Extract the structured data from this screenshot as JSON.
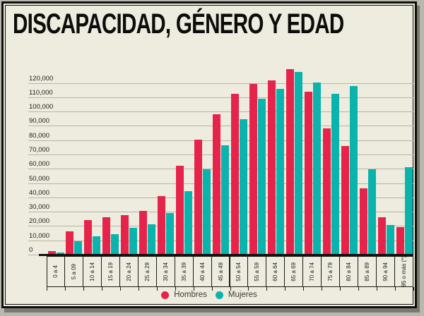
{
  "title": "DISCAPACIDAD, GÉNERO Y EDAD",
  "legend": {
    "hombres_label": "Hombres",
    "mujeres_label": "Mujeres"
  },
  "colors": {
    "hombres": "#e6234a",
    "mujeres": "#0ab3ac",
    "background": "#edecdf",
    "gridline": "#b5b4a5",
    "axis": "#111110"
  },
  "y_axis": {
    "tick_labels": [
      "0",
      "10,000",
      "20,000",
      "30,000",
      "40,000",
      "50,000",
      "60,000",
      "70,000",
      "80,000",
      "90,000",
      "100,000",
      "110,000",
      "120,000"
    ],
    "tick_step": 10000,
    "max_label": "120,000"
  },
  "chart_data": {
    "type": "bar",
    "title": "DISCAPACIDAD, GÉNERO Y EDAD",
    "categories": [
      "0 a 4",
      "5 a 09",
      "10 a 14",
      "15 a 19",
      "20 a 24",
      "25 a 29",
      "30 a 34",
      "35 a 39",
      "40 a 44",
      "45 a 49",
      "50 a 54",
      "55 a 59",
      "60 a 64",
      "65 a 69",
      "70 a 74",
      "75 a 79",
      "80 a 84",
      "85 a 89",
      "90 a 94",
      "95 o más (*)"
    ],
    "series": [
      {
        "name": "Hombres",
        "color": "#e6234a",
        "values": [
          2500,
          16500,
          24000,
          26000,
          27500,
          30500,
          41000,
          62000,
          80500,
          98000,
          112500,
          119500,
          122000,
          129500,
          114000,
          88500,
          76000,
          46500,
          26000,
          19000
        ]
      },
      {
        "name": "Mujeres",
        "color": "#0ab3ac",
        "values": [
          1500,
          9500,
          13000,
          14500,
          18500,
          21000,
          29000,
          44500,
          59500,
          76500,
          94500,
          109000,
          116000,
          127500,
          120500,
          112500,
          118000,
          59500,
          20500,
          61000
        ]
      }
    ],
    "xlabel": "",
    "ylabel": "",
    "ylim": [
      0,
      131000
    ],
    "grid": true,
    "legend_position": "bottom"
  }
}
